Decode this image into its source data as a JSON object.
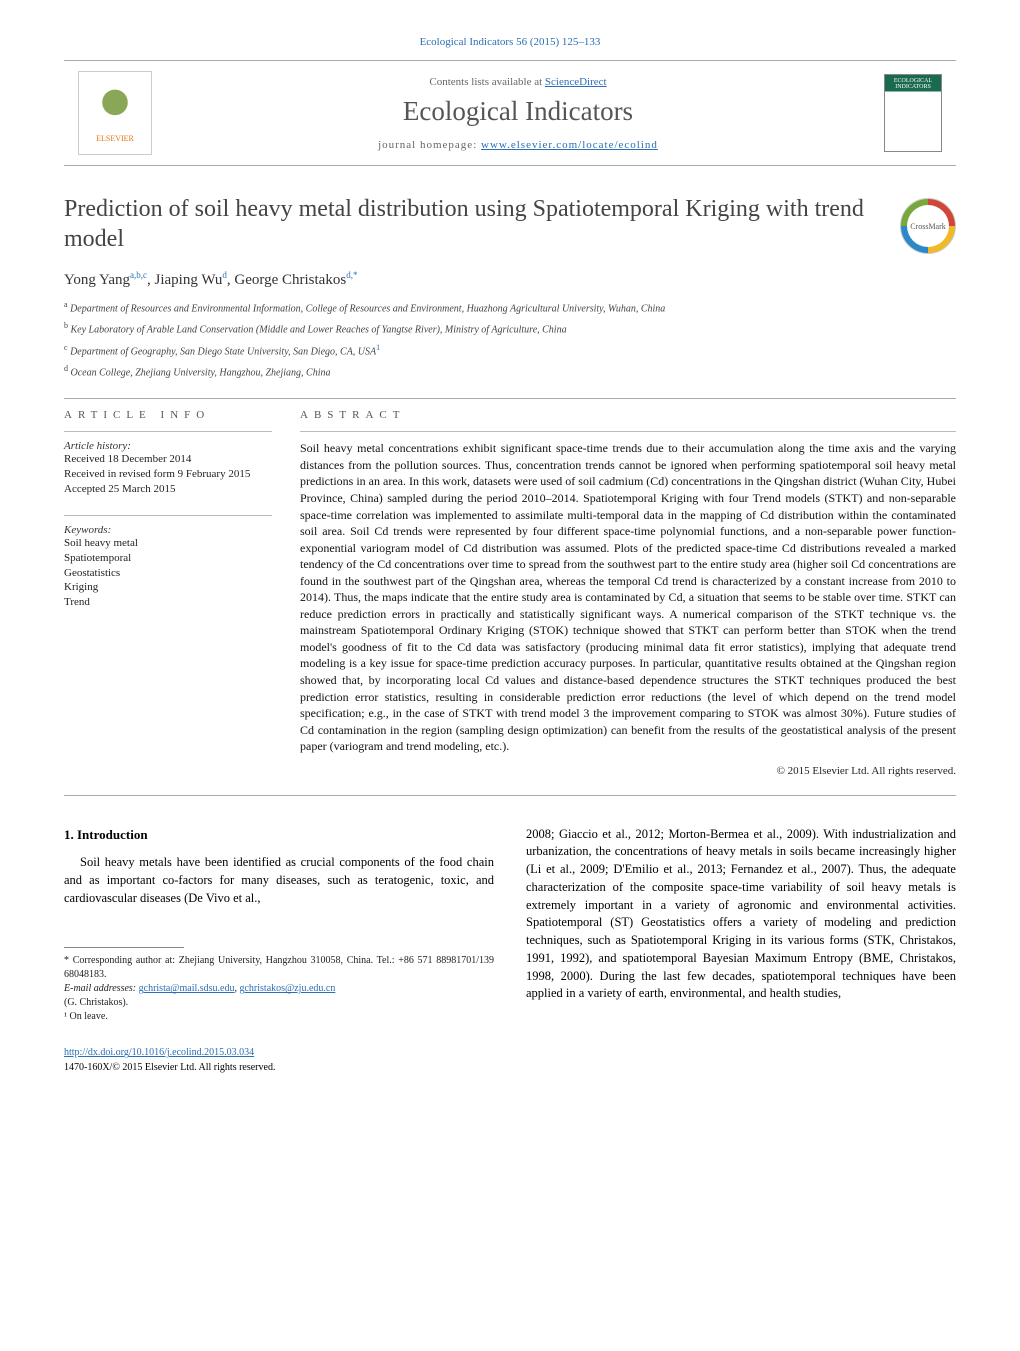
{
  "journal_ref": "Ecological Indicators 56 (2015) 125–133",
  "header": {
    "contents_prefix": "Contents lists available at ",
    "contents_link_text": "ScienceDirect",
    "journal_title": "Ecological Indicators",
    "homepage_prefix": "journal homepage: ",
    "homepage_link": "www.elsevier.com/locate/ecolind",
    "elsevier_label": "ELSEVIER",
    "cover_label": "ECOLOGICAL INDICATORS"
  },
  "crossmark_label": "CrossMark",
  "title": "Prediction of soil heavy metal distribution using Spatiotemporal Kriging with trend model",
  "authors_html_parts": {
    "a1_name": "Yong Yang",
    "a1_sup": "a,b,c",
    "a2_name": "Jiaping Wu",
    "a2_sup": "d",
    "a3_name": "George Christakos",
    "a3_sup": "d,*"
  },
  "affiliations": {
    "a": "Department of Resources and Environmental Information, College of Resources and Environment, Huazhong Agricultural University, Wuhan, China",
    "b": "Key Laboratory of Arable Land Conservation (Middle and Lower Reaches of Yangtse River), Ministry of Agriculture, China",
    "c": "Department of Geography, San Diego State University, San Diego, CA, USA",
    "c_note_sup": "1",
    "d": "Ocean College, Zhejiang University, Hangzhou, Zhejiang, China"
  },
  "info_labels": {
    "article_info": "ARTICLE INFO",
    "abstract": "ABSTRACT",
    "history": "Article history:",
    "keywords": "Keywords:"
  },
  "history": {
    "received": "Received 18 December 2014",
    "revised": "Received in revised form 9 February 2015",
    "accepted": "Accepted 25 March 2015"
  },
  "keywords": [
    "Soil heavy metal",
    "Spatiotemporal",
    "Geostatistics",
    "Kriging",
    "Trend"
  ],
  "abstract": "Soil heavy metal concentrations exhibit significant space-time trends due to their accumulation along the time axis and the varying distances from the pollution sources. Thus, concentration trends cannot be ignored when performing spatiotemporal soil heavy metal predictions in an area. In this work, datasets were used of soil cadmium (Cd) concentrations in the Qingshan district (Wuhan City, Hubei Province, China) sampled during the period 2010–2014. Spatiotemporal Kriging with four Trend models (STKT) and non-separable space-time correlation was implemented to assimilate multi-temporal data in the mapping of Cd distribution within the contaminated soil area. Soil Cd trends were represented by four different space-time polynomial functions, and a non-separable power function-exponential variogram model of Cd distribution was assumed. Plots of the predicted space-time Cd distributions revealed a marked tendency of the Cd concentrations over time to spread from the southwest part to the entire study area (higher soil Cd concentrations are found in the southwest part of the Qingshan area, whereas the temporal Cd trend is characterized by a constant increase from 2010 to 2014). Thus, the maps indicate that the entire study area is contaminated by Cd, a situation that seems to be stable over time. STKT can reduce prediction errors in practically and statistically significant ways. A numerical comparison of the STKT technique vs. the mainstream Spatiotemporal Ordinary Kriging (STOK) technique showed that STKT can perform better than STOK when the trend model's goodness of fit to the Cd data was satisfactory (producing minimal data fit error statistics), implying that adequate trend modeling is a key issue for space-time prediction accuracy purposes. In particular, quantitative results obtained at the Qingshan region showed that, by incorporating local Cd values and distance-based dependence structures the STKT techniques produced the best prediction error statistics, resulting in considerable prediction error reductions (the level of which depend on the trend model specification; e.g., in the case of STKT with trend model 3 the improvement comparing to STOK was almost 30%). Future studies of Cd contamination in the region (sampling design optimization) can benefit from the results of the geostatistical analysis of the present paper (variogram and trend modeling, etc.).",
  "copyright": "© 2015 Elsevier Ltd. All rights reserved.",
  "body": {
    "section_heading": "1.  Introduction",
    "left_para": "Soil heavy metals have been identified as crucial components of the food chain and as important co-factors for many diseases, such as teratogenic, toxic, and cardiovascular diseases (De Vivo et al.,",
    "right_para_pre": "2008; Giaccio et al., 2012; Morton-Bermea et al., 2009). With industrialization and urbanization, the concentrations of heavy metals in soils became increasingly higher (Li et al., 2009; D'Emilio et al., 2013; Fernandez et al., 2007). Thus, the adequate characterization of the composite space-time variability of soil heavy metals is extremely important in a variety of agronomic and environmental activities. Spatiotemporal (ST) Geostatistics offers a variety of modeling and prediction techniques, such as Spatiotemporal Kriging in its various forms (STK, Christakos, 1991, 1992), and spatiotemporal Bayesian Maximum Entropy (BME, Christakos, 1998, 2000). During the last few decades, spatiotemporal techniques have been applied in a variety of earth, environmental, and health studies,"
  },
  "footnotes": {
    "corr": "* Corresponding author at: Zhejiang University, Hangzhou 310058, China. Tel.: +86 571 88981701/139 68048183.",
    "email_label": "E-mail addresses: ",
    "email1": "gchrista@mail.sdsu.edu",
    "email_sep": ", ",
    "email2": "gchristakos@zju.edu.cn",
    "email_author": "(G. Christakos).",
    "note1": "¹ On leave."
  },
  "doi": {
    "link": "http://dx.doi.org/10.1016/j.ecolind.2015.03.034",
    "issn_line": "1470-160X/© 2015 Elsevier Ltd. All rights reserved."
  },
  "colors": {
    "link": "#2a6fb5",
    "rule": "#aaaaaa",
    "text": "#111111",
    "muted": "#666666"
  }
}
